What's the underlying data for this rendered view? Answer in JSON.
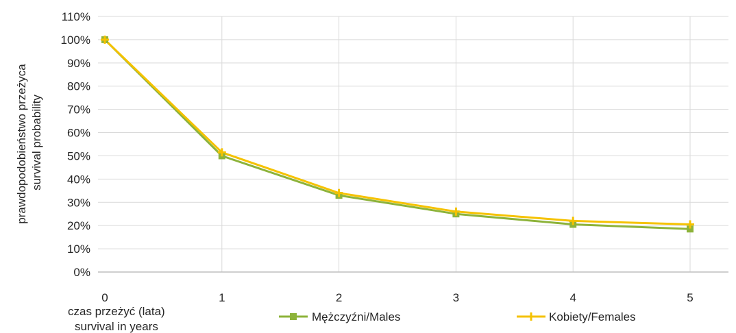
{
  "chart_data": {
    "type": "line",
    "title": "",
    "xlabel": [
      "czas przeżyć (lata)",
      "survival  in  years"
    ],
    "ylabel": [
      "prawdopodobieństwo  przeżyca",
      "survival  probability"
    ],
    "x": [
      0,
      1,
      2,
      3,
      4,
      5
    ],
    "xticks": [
      "0",
      "1",
      "2",
      "3",
      "4",
      "5"
    ],
    "yticks": [
      "0%",
      "10%",
      "20%",
      "30%",
      "40%",
      "50%",
      "60%",
      "70%",
      "80%",
      "90%",
      "100%",
      "110%"
    ],
    "ylim": [
      0,
      110
    ],
    "grid": true,
    "legend_position": "bottom",
    "series": [
      {
        "name": "Mężczyźni/Males",
        "values": [
          100,
          50,
          33,
          25,
          20.5,
          18.5
        ],
        "color": "#8DB33A",
        "marker": "square"
      },
      {
        "name": "Kobiety/Females",
        "values": [
          100,
          51.5,
          34,
          26,
          22,
          20.5
        ],
        "color": "#F5C200",
        "marker": "cross"
      }
    ]
  }
}
